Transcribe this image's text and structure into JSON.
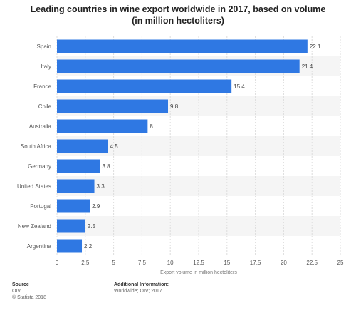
{
  "title_line1": "Leading countries in wine export worldwide in 2017, based on volume",
  "title_line2": "(in million hectoliters)",
  "chart_data": {
    "type": "bar",
    "orientation": "horizontal",
    "categories": [
      "Spain",
      "Italy",
      "France",
      "Chile",
      "Australia",
      "South Africa",
      "Germany",
      "United States",
      "Portugal",
      "New Zealand",
      "Argentina"
    ],
    "values": [
      22.1,
      21.4,
      15.4,
      9.8,
      8,
      4.5,
      3.8,
      3.3,
      2.9,
      2.5,
      2.2
    ],
    "value_labels": [
      "22.1",
      "21.4",
      "15.4",
      "9.8",
      "8",
      "4.5",
      "3.8",
      "3.3",
      "2.9",
      "2.5",
      "2.2"
    ],
    "xlabel": "Export volume in million hectoliters",
    "ylabel": "",
    "xlim": [
      0,
      25
    ],
    "x_ticks": [
      "0",
      "2.5",
      "5",
      "7.5",
      "10",
      "12.5",
      "15",
      "17.5",
      "20",
      "22.5",
      "25"
    ],
    "grid": true,
    "bar_color": "#2f78e3"
  },
  "footer": {
    "source_label": "Source",
    "source_value": "OIV",
    "copyright": "© Statista 2018",
    "additional_label": "Additional Information:",
    "additional_value": "Worldwide; OIV; 2017"
  }
}
